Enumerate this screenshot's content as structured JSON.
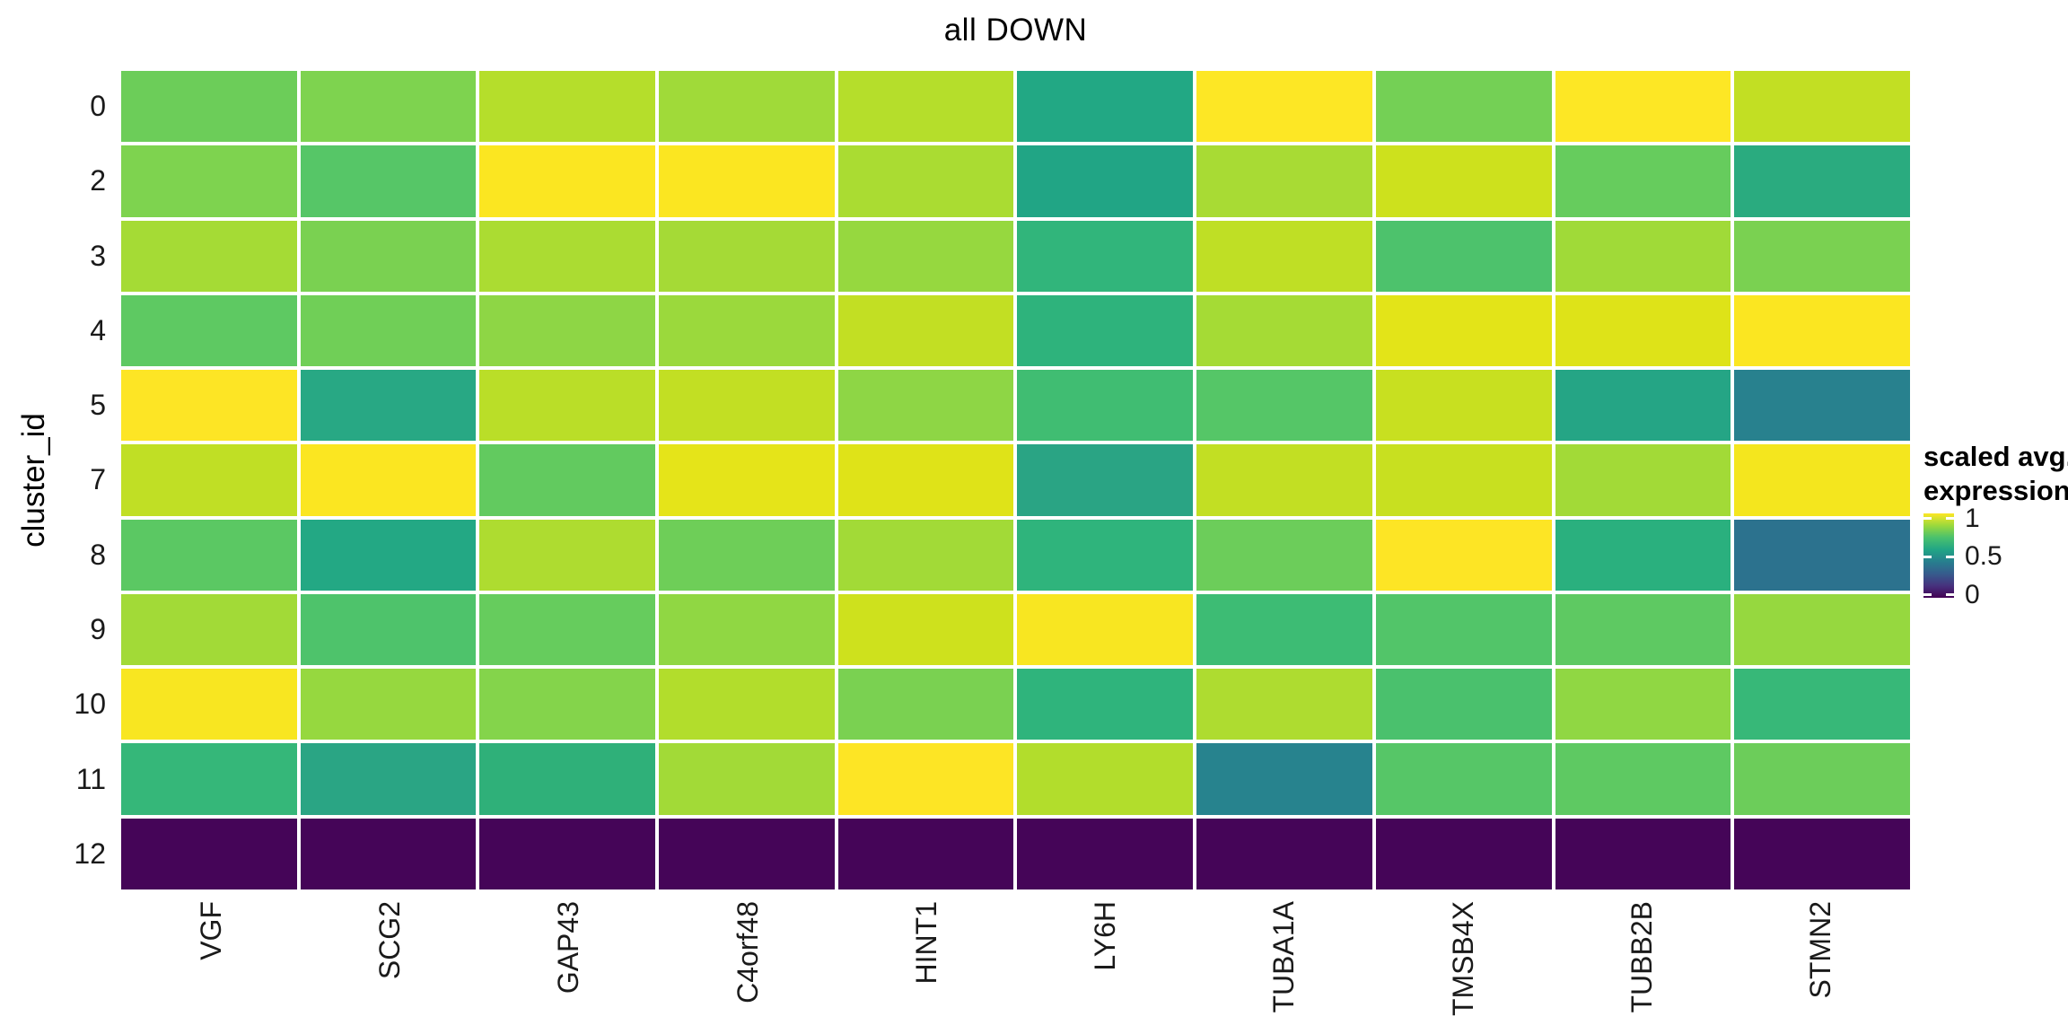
{
  "chart_data": {
    "type": "heatmap",
    "title": "all DOWN",
    "xlabel": "",
    "ylabel": "cluster_id",
    "columns": [
      "VGF",
      "SCG2",
      "GAP43",
      "C4orf48",
      "HINT1",
      "LY6H",
      "TUBA1A",
      "TMSB4X",
      "TUBB2B",
      "STMN2"
    ],
    "rows": [
      "0",
      "2",
      "3",
      "4",
      "5",
      "7",
      "8",
      "9",
      "10",
      "11",
      "12"
    ],
    "values": [
      [
        0.78,
        0.81,
        0.89,
        0.86,
        0.89,
        0.6,
        1.0,
        0.79,
        1.0,
        0.91
      ],
      [
        0.81,
        0.73,
        0.99,
        0.99,
        0.87,
        0.59,
        0.87,
        0.93,
        0.77,
        0.62
      ],
      [
        0.86,
        0.8,
        0.87,
        0.86,
        0.84,
        0.66,
        0.9,
        0.72,
        0.86,
        0.8
      ],
      [
        0.75,
        0.78,
        0.84,
        0.85,
        0.91,
        0.65,
        0.86,
        0.96,
        0.95,
        0.99
      ],
      [
        1.0,
        0.6,
        0.9,
        0.91,
        0.84,
        0.7,
        0.73,
        0.92,
        0.59,
        0.46
      ],
      [
        0.9,
        0.99,
        0.76,
        0.96,
        0.95,
        0.59,
        0.91,
        0.92,
        0.86,
        0.97
      ],
      [
        0.74,
        0.6,
        0.88,
        0.78,
        0.86,
        0.65,
        0.77,
        1.0,
        0.64,
        0.41
      ],
      [
        0.86,
        0.72,
        0.76,
        0.84,
        0.93,
        0.98,
        0.69,
        0.72,
        0.75,
        0.84
      ],
      [
        0.98,
        0.84,
        0.82,
        0.88,
        0.8,
        0.65,
        0.88,
        0.71,
        0.84,
        0.67
      ],
      [
        0.66,
        0.59,
        0.64,
        0.86,
        1.0,
        0.88,
        0.47,
        0.73,
        0.75,
        0.77
      ],
      [
        0.0,
        0.0,
        0.0,
        0.0,
        0.0,
        0.0,
        0.0,
        0.0,
        0.0,
        0.0
      ]
    ],
    "cell_colors": [
      [
        "#6ccd59",
        "#7ed34f",
        "#b5de2b",
        "#a0da39",
        "#b5de2b",
        "#22a884",
        "#fde725",
        "#74d055",
        "#fde725",
        "#c2df23"
      ],
      [
        "#7ed34f",
        "#56c667",
        "#fbe621",
        "#fbe621",
        "#aadc32",
        "#21a585",
        "#a8db34",
        "#cde11d",
        "#66cc5d",
        "#2aab7f"
      ],
      [
        "#a5db35",
        "#7ad151",
        "#abdc32",
        "#a5da36",
        "#96d83f",
        "#31b57b",
        "#bfdf25",
        "#4dc26c",
        "#a0da38",
        "#7ad151"
      ],
      [
        "#5ec962",
        "#70cf57",
        "#8ed645",
        "#9bd93c",
        "#c2df23",
        "#2eb37c",
        "#a5db35",
        "#e3e418",
        "#dee318",
        "#fbe621"
      ],
      [
        "#fde525",
        "#28a884",
        "#bade28",
        "#c2df23",
        "#8ed645",
        "#40bd72",
        "#55c667",
        "#c8e020",
        "#25a585",
        "#28818e"
      ],
      [
        "#c0df25",
        "#fbe621",
        "#62ca5f",
        "#e5e419",
        "#dfe318",
        "#2aa484",
        "#c2df23",
        "#c8e020",
        "#a2da37",
        "#f4e61e"
      ],
      [
        "#5bc863",
        "#23a884",
        "#aedc30",
        "#6ece58",
        "#a2da37",
        "#2fb47c",
        "#6ccd5a",
        "#fde525",
        "#2ab07e",
        "#2c728e"
      ],
      [
        "#a2da37",
        "#4ec36b",
        "#66cc5d",
        "#90d743",
        "#cee11d",
        "#f8e621",
        "#3dbc74",
        "#52c569",
        "#5ec962",
        "#96d83f"
      ],
      [
        "#f8e621",
        "#96d83f",
        "#84d44b",
        "#b2dd2c",
        "#7ad151",
        "#2fb47c",
        "#aedc30",
        "#4ac16d",
        "#90d743",
        "#37b878"
      ],
      [
        "#35b779",
        "#2aa584",
        "#2fb079",
        "#a2da37",
        "#fde525",
        "#b2dd2c",
        "#27838e",
        "#56c667",
        "#5ec962",
        "#6ccd5a"
      ],
      [
        "#450558",
        "#450558",
        "#450558",
        "#450558",
        "#450558",
        "#450558",
        "#450558",
        "#450558",
        "#450558",
        "#450558"
      ]
    ],
    "colormap": "viridis",
    "value_range": [
      0,
      1
    ],
    "grid_lines": false,
    "gap_color": "#ffffff",
    "legend": {
      "position": "right",
      "title_lines": [
        "scaled avg.",
        "expression"
      ],
      "ticks": [
        {
          "label": "1",
          "value": 1.0
        },
        {
          "label": "0.5",
          "value": 0.5
        },
        {
          "label": "0",
          "value": 0.0
        }
      ],
      "gradient_stops": [
        "#440154",
        "#46327e",
        "#365c8d",
        "#277f8e",
        "#21a585",
        "#4ac16d",
        "#9bd93c",
        "#fde725"
      ]
    }
  }
}
